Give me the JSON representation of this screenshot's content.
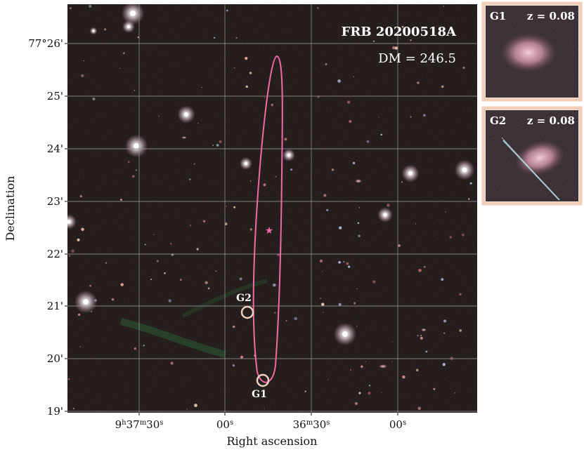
{
  "main_panel": {
    "title": "FRB 20200518A",
    "dm_text": "DM = 246.5",
    "xlabel": "Right ascension",
    "ylabel": "Declination",
    "dec_ticks": [
      "77°26'",
      "25'",
      "24'",
      "23'",
      "22'",
      "21'",
      "20'",
      "19'"
    ],
    "ra_ticks": [
      {
        "parts": [
          "9",
          "h",
          "37",
          "m",
          "30",
          "s"
        ]
      },
      {
        "parts": [
          "00",
          "s"
        ]
      },
      {
        "parts": [
          "36",
          "m",
          "30",
          "s"
        ]
      },
      {
        "parts": [
          "00",
          "s"
        ]
      }
    ],
    "host_labels": {
      "g1": "G1",
      "g2": "G2"
    },
    "colors": {
      "ellipse": "#f06aa8",
      "marker": "#f06aa8",
      "host_circle": "#e9cfc0",
      "grid": "#9a9a9a"
    }
  },
  "insets": [
    {
      "label": "G1",
      "redshift": "z = 0.08",
      "border_color": "#f2cdb8"
    },
    {
      "label": "G2",
      "redshift": "z = 0.08",
      "border_color": "#f2cdb8"
    }
  ]
}
